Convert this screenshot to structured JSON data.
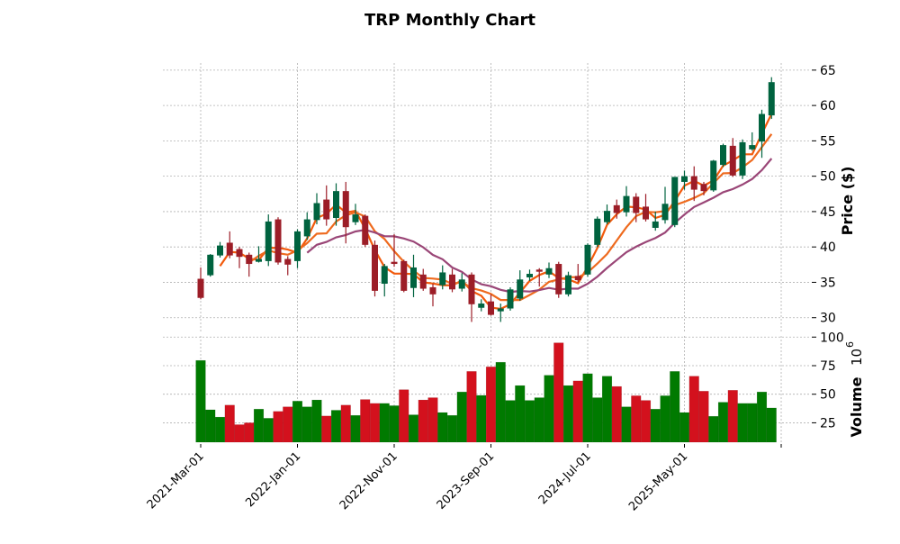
{
  "chart_data": {
    "type": "candlestick",
    "title": "TRP Monthly Chart",
    "ylabel": "Price ($)",
    "volume_label": "Volume",
    "volume_exponent_label": "10",
    "volume_exponent_power": "6",
    "ylim": [
      27.8,
      66.0
    ],
    "volume_ylim": [
      8,
      101
    ],
    "yticks": [
      30,
      35,
      40,
      45,
      50,
      55,
      60,
      65
    ],
    "volume_yticks": [
      25,
      50,
      75,
      100
    ],
    "xtick_indices": [
      0,
      10,
      20,
      30,
      40,
      50,
      60
    ],
    "xtick_labels": [
      "2021-Mar-01",
      "2022-Jan-01",
      "2022-Nov-01",
      "2023-Sep-01",
      "2024-Jul-01",
      "2025-May-01",
      ""
    ],
    "moving_averages": [
      3,
      6,
      12
    ],
    "colors": {
      "up": "#00633f",
      "down": "#9c1d27",
      "vol_up": "#007a00",
      "vol_down": "#d3111d",
      "ma": [
        "#f25a0c",
        "#ee6a1e",
        "#9a4677"
      ]
    },
    "candles": [
      [
        35.5,
        37.1,
        32.6,
        32.8,
        "d"
      ],
      [
        36.0,
        39.0,
        35.8,
        38.9,
        "u"
      ],
      [
        38.8,
        40.7,
        38.5,
        40.2,
        "u"
      ],
      [
        40.6,
        42.2,
        38.4,
        38.8,
        "d"
      ],
      [
        39.7,
        40.0,
        37.0,
        38.6,
        "d"
      ],
      [
        38.9,
        39.2,
        35.8,
        37.6,
        "d"
      ],
      [
        37.9,
        40.1,
        37.8,
        38.3,
        "u"
      ],
      [
        38.0,
        44.6,
        37.3,
        43.6,
        "u"
      ],
      [
        43.9,
        44.2,
        37.5,
        37.8,
        "d"
      ],
      [
        38.3,
        38.7,
        36.0,
        37.5,
        "d"
      ],
      [
        38.0,
        42.5,
        37.0,
        42.2,
        "u"
      ],
      [
        41.5,
        44.9,
        41.0,
        43.9,
        "u"
      ],
      [
        43.8,
        47.6,
        43.2,
        46.2,
        "u"
      ],
      [
        46.7,
        48.7,
        43.0,
        43.9,
        "d"
      ],
      [
        44.1,
        49.0,
        43.0,
        47.9,
        "u"
      ],
      [
        47.9,
        49.2,
        40.5,
        42.8,
        "d"
      ],
      [
        43.5,
        46.1,
        43.1,
        44.6,
        "u"
      ],
      [
        44.4,
        44.6,
        40.0,
        40.3,
        "d"
      ],
      [
        40.3,
        40.9,
        33.0,
        33.8,
        "d"
      ],
      [
        34.8,
        37.6,
        33.0,
        37.3,
        "u"
      ],
      [
        37.9,
        41.8,
        37.2,
        37.6,
        "d"
      ],
      [
        38.0,
        38.2,
        33.6,
        33.8,
        "d"
      ],
      [
        34.2,
        38.9,
        32.9,
        37.1,
        "u"
      ],
      [
        36.1,
        36.9,
        33.8,
        34.1,
        "d"
      ],
      [
        34.3,
        34.8,
        31.6,
        33.3,
        "d"
      ],
      [
        34.6,
        37.4,
        34.0,
        36.4,
        "u"
      ],
      [
        36.1,
        36.9,
        33.6,
        34.0,
        "d"
      ],
      [
        34.1,
        36.3,
        33.7,
        35.4,
        "u"
      ],
      [
        36.1,
        36.4,
        29.4,
        31.9,
        "d"
      ],
      [
        31.4,
        32.6,
        30.9,
        32.0,
        "u"
      ],
      [
        32.3,
        33.3,
        30.3,
        30.4,
        "d"
      ],
      [
        30.9,
        32.0,
        29.4,
        31.3,
        "u"
      ],
      [
        31.3,
        34.3,
        31.0,
        34.0,
        "u"
      ],
      [
        32.7,
        36.7,
        32.4,
        35.4,
        "u"
      ],
      [
        35.7,
        36.8,
        35.2,
        36.2,
        "u"
      ],
      [
        36.8,
        37.0,
        34.4,
        36.5,
        "d"
      ],
      [
        36.1,
        37.8,
        35.6,
        37.0,
        "u"
      ],
      [
        37.6,
        37.9,
        32.8,
        33.3,
        "d"
      ],
      [
        33.3,
        36.5,
        33.0,
        36.0,
        "u"
      ],
      [
        35.9,
        37.6,
        35.0,
        35.3,
        "d"
      ],
      [
        36.1,
        40.5,
        35.8,
        40.3,
        "u"
      ],
      [
        40.3,
        44.3,
        40.0,
        44.0,
        "u"
      ],
      [
        43.5,
        46.0,
        43.2,
        45.1,
        "u"
      ],
      [
        45.9,
        46.7,
        44.0,
        44.8,
        "d"
      ],
      [
        44.9,
        48.6,
        44.3,
        47.2,
        "u"
      ],
      [
        47.1,
        47.6,
        43.5,
        44.8,
        "d"
      ],
      [
        45.7,
        47.5,
        43.6,
        43.9,
        "d"
      ],
      [
        42.7,
        45.0,
        42.3,
        43.6,
        "u"
      ],
      [
        43.8,
        48.5,
        43.3,
        46.1,
        "u"
      ],
      [
        43.1,
        49.9,
        42.8,
        49.9,
        "u"
      ],
      [
        49.2,
        50.8,
        48.1,
        50.0,
        "u"
      ],
      [
        50.0,
        51.4,
        46.5,
        48.1,
        "d"
      ],
      [
        48.9,
        49.2,
        47.3,
        47.9,
        "d"
      ],
      [
        48.0,
        52.3,
        47.8,
        52.2,
        "u"
      ],
      [
        51.6,
        54.6,
        51.3,
        54.4,
        "u"
      ],
      [
        54.3,
        55.4,
        49.9,
        50.1,
        "d"
      ],
      [
        50.1,
        55.2,
        49.6,
        54.8,
        "u"
      ],
      [
        53.8,
        56.2,
        53.6,
        54.4,
        "u"
      ],
      [
        54.9,
        59.4,
        52.6,
        58.8,
        "u"
      ],
      [
        58.6,
        64.0,
        58.1,
        63.3,
        "u"
      ]
    ],
    "volume": [
      [
        79.6,
        "u"
      ],
      [
        36.4,
        "u"
      ],
      [
        30,
        "u"
      ],
      [
        40.5,
        "d"
      ],
      [
        23.4,
        "d"
      ],
      [
        25,
        "d"
      ],
      [
        37,
        "u"
      ],
      [
        29,
        "u"
      ],
      [
        35,
        "d"
      ],
      [
        39,
        "d"
      ],
      [
        44,
        "u"
      ],
      [
        39,
        "u"
      ],
      [
        45,
        "u"
      ],
      [
        31,
        "d"
      ],
      [
        36,
        "u"
      ],
      [
        40.5,
        "d"
      ],
      [
        31.5,
        "u"
      ],
      [
        45.4,
        "d"
      ],
      [
        42,
        "d"
      ],
      [
        42,
        "u"
      ],
      [
        40,
        "u"
      ],
      [
        54,
        "d"
      ],
      [
        32,
        "u"
      ],
      [
        45,
        "d"
      ],
      [
        47,
        "d"
      ],
      [
        34,
        "u"
      ],
      [
        31.5,
        "u"
      ],
      [
        52,
        "u"
      ],
      [
        70,
        "d"
      ],
      [
        49,
        "u"
      ],
      [
        74,
        "d"
      ],
      [
        78,
        "u"
      ],
      [
        44.6,
        "u"
      ],
      [
        57.6,
        "u"
      ],
      [
        44.6,
        "u"
      ],
      [
        47,
        "u"
      ],
      [
        66.6,
        "u"
      ],
      [
        95,
        "d"
      ],
      [
        57.6,
        "u"
      ],
      [
        61.7,
        "d"
      ],
      [
        68,
        "u"
      ],
      [
        47,
        "u"
      ],
      [
        65.8,
        "u"
      ],
      [
        56.8,
        "d"
      ],
      [
        39,
        "u"
      ],
      [
        48.7,
        "d"
      ],
      [
        44.6,
        "d"
      ],
      [
        37,
        "u"
      ],
      [
        48.7,
        "u"
      ],
      [
        70,
        "u"
      ],
      [
        34,
        "u"
      ],
      [
        65.8,
        "d"
      ],
      [
        52.7,
        "d"
      ],
      [
        30.7,
        "u"
      ],
      [
        43,
        "u"
      ],
      [
        53.5,
        "d"
      ],
      [
        42,
        "u"
      ],
      [
        42,
        "u"
      ],
      [
        52,
        "u"
      ],
      [
        38,
        "u"
      ]
    ]
  }
}
